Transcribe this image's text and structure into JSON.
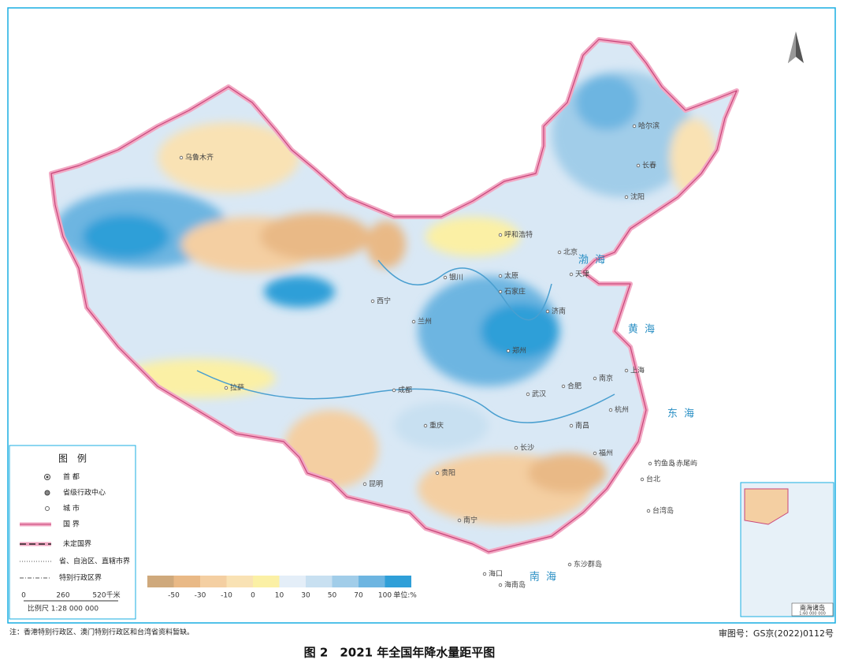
{
  "title": "图 2　2021 年全国年降水量距平图",
  "note": "注：香港特别行政区、澳门特别行政区和台湾省资料暂缺。",
  "approval": "审图号：GS京(2022)0112号",
  "legend": {
    "title": "图　例",
    "items": [
      "首 都",
      "省级行政中心",
      "城 市",
      "国 界",
      "未定国界",
      "省、自治区、直辖市界",
      "特别行政区界"
    ],
    "scale_bar": [
      "0",
      "260",
      "520千米"
    ],
    "scale_text": "比例尺 1:28 000 000"
  },
  "color_scale": {
    "colors": [
      "#cfa97c",
      "#e9b986",
      "#f4cfa2",
      "#f9e2b4",
      "#fbf0a5",
      "#e4eef8",
      "#c8e0f1",
      "#a1cde9",
      "#6db5e1",
      "#2f9fd8"
    ],
    "labels": [
      "-50",
      "-30",
      "-10",
      "0",
      "10",
      "30",
      "50",
      "70",
      "100"
    ],
    "unit": "单位:%"
  },
  "seas": [
    "渤 海",
    "黄 海",
    "东 海",
    "南 海"
  ],
  "places": [
    "乌鲁木齐",
    "呼和浩特",
    "银川",
    "兰州",
    "西宁",
    "拉萨",
    "成都",
    "重庆",
    "贵阳",
    "昆明",
    "南宁",
    "海口",
    "长沙",
    "南昌",
    "福州",
    "台北",
    "合肥",
    "南京",
    "上海",
    "杭州",
    "武汉",
    "郑州",
    "济南",
    "石家庄",
    "太原",
    "北京",
    "天津",
    "沈阳",
    "长春",
    "哈尔滨",
    "钓鱼岛",
    "赤尾屿",
    "台湾岛",
    "东沙群岛",
    "海南岛"
  ],
  "inset": {
    "title": "南海诸岛",
    "scale": "1:60 000 000"
  }
}
